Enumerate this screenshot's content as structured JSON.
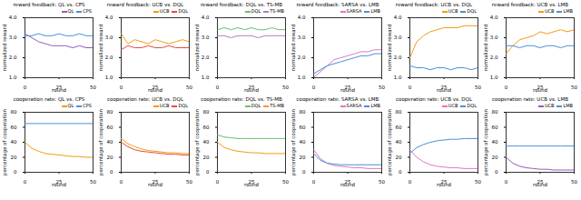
{
  "chart_data": [
    {
      "type": "line",
      "title": "reward feedback: QL vs. CPS",
      "x_label": "round",
      "y_label": "normalized reward",
      "x": [
        0,
        5,
        10,
        15,
        20,
        25,
        30,
        35,
        40,
        45,
        50
      ],
      "xlim": [
        0,
        50
      ],
      "xticks": [
        0,
        25,
        50
      ],
      "ylim": [
        1,
        4
      ],
      "yticks": [
        1,
        2,
        3,
        4
      ],
      "series": [
        {
          "name": "QL",
          "color": "#9b59b6",
          "values": [
            3.2,
            3.0,
            2.8,
            2.7,
            2.6,
            2.6,
            2.6,
            2.5,
            2.6,
            2.5,
            2.5
          ]
        },
        {
          "name": "CPS",
          "color": "#4a90d9",
          "values": [
            3.1,
            3.1,
            3.2,
            3.1,
            3.1,
            3.2,
            3.1,
            3.1,
            3.2,
            3.1,
            3.1
          ]
        }
      ]
    },
    {
      "type": "line",
      "title": "reward feedback: UCB vs. DQL",
      "x_label": "round",
      "y_label": "normalized reward",
      "x": [
        0,
        5,
        10,
        15,
        20,
        25,
        30,
        35,
        40,
        45,
        50
      ],
      "xlim": [
        0,
        50
      ],
      "xticks": [
        0,
        25,
        50
      ],
      "ylim": [
        1,
        4
      ],
      "yticks": [
        1,
        2,
        3,
        4
      ],
      "series": [
        {
          "name": "UCB",
          "color": "#f39c12",
          "values": [
            3.2,
            2.7,
            2.9,
            2.8,
            2.7,
            2.9,
            2.8,
            2.7,
            2.8,
            2.9,
            2.8
          ]
        },
        {
          "name": "DQL",
          "color": "#e74c3c",
          "values": [
            2.4,
            2.6,
            2.5,
            2.5,
            2.6,
            2.5,
            2.5,
            2.6,
            2.5,
            2.5,
            2.5
          ]
        }
      ]
    },
    {
      "type": "line",
      "title": "reward feedback: DQL vs. TS-MB",
      "x_label": "round",
      "y_label": "normalized reward",
      "x": [
        0,
        5,
        10,
        15,
        20,
        25,
        30,
        35,
        40,
        45,
        50
      ],
      "xlim": [
        0,
        50
      ],
      "xticks": [
        0,
        25,
        50
      ],
      "ylim": [
        1,
        4
      ],
      "yticks": [
        1,
        2,
        3,
        4
      ],
      "series": [
        {
          "name": "DQL",
          "color": "#6abf69",
          "values": [
            3.4,
            3.5,
            3.4,
            3.5,
            3.4,
            3.5,
            3.4,
            3.4,
            3.5,
            3.4,
            3.4
          ]
        },
        {
          "name": "TS-MB",
          "color": "#b07cc6",
          "values": [
            3.1,
            3.1,
            3.0,
            3.1,
            3.1,
            3.1,
            3.0,
            3.1,
            3.1,
            3.1,
            3.1
          ]
        }
      ]
    },
    {
      "type": "line",
      "title": "reward feedback: SARSA vs. LMB",
      "x_label": "round",
      "y_label": "normalized reward",
      "x": [
        0,
        5,
        10,
        15,
        20,
        25,
        30,
        35,
        40,
        45,
        50
      ],
      "xlim": [
        0,
        50
      ],
      "xticks": [
        0,
        25,
        50
      ],
      "ylim": [
        1,
        4
      ],
      "yticks": [
        1,
        2,
        3,
        4
      ],
      "series": [
        {
          "name": "SARSA",
          "color": "#e377c2",
          "values": [
            1.0,
            1.3,
            1.6,
            1.9,
            2.0,
            2.1,
            2.2,
            2.3,
            2.3,
            2.4,
            2.4
          ]
        },
        {
          "name": "LMB",
          "color": "#4a90d9",
          "values": [
            1.2,
            1.4,
            1.6,
            1.7,
            1.8,
            1.9,
            2.0,
            2.1,
            2.1,
            2.2,
            2.2
          ]
        }
      ]
    },
    {
      "type": "line",
      "title": "reward feedback: UCB vs. DQL",
      "x_label": "round",
      "y_label": "normalized reward",
      "x": [
        0,
        5,
        10,
        15,
        20,
        25,
        30,
        35,
        40,
        45,
        50
      ],
      "xlim": [
        0,
        50
      ],
      "xticks": [
        0,
        25,
        50
      ],
      "ylim": [
        1,
        4
      ],
      "yticks": [
        1,
        2,
        3,
        4
      ],
      "series": [
        {
          "name": "UCB",
          "color": "#f39c12",
          "values": [
            2.0,
            2.8,
            3.1,
            3.3,
            3.4,
            3.5,
            3.5,
            3.5,
            3.6,
            3.6,
            3.6
          ]
        },
        {
          "name": "DQL",
          "color": "#4a90d9",
          "values": [
            1.6,
            1.5,
            1.5,
            1.4,
            1.5,
            1.5,
            1.4,
            1.5,
            1.5,
            1.4,
            1.5
          ]
        }
      ]
    },
    {
      "type": "line",
      "title": "reward feedback: UCB vs. LMB",
      "x_label": "round",
      "y_label": "normalized reward",
      "x": [
        0,
        5,
        10,
        15,
        20,
        25,
        30,
        35,
        40,
        45,
        50
      ],
      "xlim": [
        0,
        50
      ],
      "xticks": [
        0,
        25,
        50
      ],
      "ylim": [
        1,
        4
      ],
      "yticks": [
        1,
        2,
        3,
        4
      ],
      "series": [
        {
          "name": "UCB",
          "color": "#f39c12",
          "values": [
            2.2,
            2.6,
            2.9,
            3.0,
            3.1,
            3.3,
            3.2,
            3.3,
            3.4,
            3.3,
            3.4
          ]
        },
        {
          "name": "LMB",
          "color": "#4a90d9",
          "values": [
            2.6,
            2.6,
            2.5,
            2.6,
            2.6,
            2.5,
            2.6,
            2.6,
            2.5,
            2.6,
            2.6
          ]
        }
      ]
    },
    {
      "type": "line",
      "title": "cooperation rate: QL vs. CPS",
      "x_label": "round",
      "y_label": "percentage of cooperation",
      "x": [
        0,
        5,
        10,
        15,
        20,
        25,
        30,
        35,
        40,
        45,
        50
      ],
      "xlim": [
        0,
        50
      ],
      "xticks": [
        0,
        25,
        50
      ],
      "ylim": [
        0,
        80
      ],
      "yticks": [
        0,
        20,
        40,
        60,
        80
      ],
      "series": [
        {
          "name": "QL",
          "color": "#f39c12",
          "values": [
            40,
            32,
            28,
            25,
            24,
            23,
            22,
            21,
            21,
            20,
            20
          ]
        },
        {
          "name": "CPS",
          "color": "#4a90d9",
          "values": [
            65,
            65,
            65,
            65,
            65,
            65,
            65,
            65,
            65,
            65,
            65
          ]
        }
      ]
    },
    {
      "type": "line",
      "title": "cooperation rate: UCB vs. DQL",
      "x_label": "round",
      "y_label": "percentage of cooperation",
      "x": [
        0,
        5,
        10,
        15,
        20,
        25,
        30,
        35,
        40,
        45,
        50
      ],
      "xlim": [
        0,
        50
      ],
      "xticks": [
        0,
        25,
        50
      ],
      "ylim": [
        0,
        80
      ],
      "yticks": [
        0,
        20,
        40,
        60,
        80
      ],
      "series": [
        {
          "name": "UCB",
          "color": "#f39c12",
          "values": [
            45,
            38,
            34,
            31,
            29,
            28,
            27,
            26,
            26,
            25,
            25
          ]
        },
        {
          "name": "DQL",
          "color": "#e74c3c",
          "values": [
            40,
            34,
            30,
            28,
            27,
            26,
            25,
            24,
            24,
            23,
            23
          ]
        }
      ]
    },
    {
      "type": "line",
      "title": "cooperation rate: DQL vs. TS-MB",
      "x_label": "round",
      "y_label": "percentage of cooperation",
      "x": [
        0,
        5,
        10,
        15,
        20,
        25,
        30,
        35,
        40,
        45,
        50
      ],
      "xlim": [
        0,
        50
      ],
      "xticks": [
        0,
        25,
        50
      ],
      "ylim": [
        0,
        80
      ],
      "yticks": [
        0,
        20,
        40,
        60,
        80
      ],
      "series": [
        {
          "name": "DQL",
          "color": "#6abf69",
          "values": [
            50,
            47,
            46,
            45,
            45,
            45,
            45,
            45,
            45,
            45,
            45
          ]
        },
        {
          "name": "TS-MB",
          "color": "#f39c12",
          "values": [
            40,
            33,
            30,
            28,
            27,
            26,
            26,
            25,
            25,
            25,
            25
          ]
        }
      ]
    },
    {
      "type": "line",
      "title": "cooperation rate: SARSA vs. LMB",
      "x_label": "round",
      "y_label": "percentage of cooperation",
      "x": [
        0,
        5,
        10,
        15,
        20,
        25,
        30,
        35,
        40,
        45,
        50
      ],
      "xlim": [
        0,
        50
      ],
      "xticks": [
        0,
        25,
        50
      ],
      "ylim": [
        0,
        80
      ],
      "yticks": [
        0,
        20,
        40,
        60,
        80
      ],
      "series": [
        {
          "name": "SARSA",
          "color": "#e377c2",
          "values": [
            30,
            18,
            12,
            9,
            8,
            7,
            6,
            6,
            5,
            5,
            5
          ]
        },
        {
          "name": "LMB",
          "color": "#4a90d9",
          "values": [
            25,
            16,
            12,
            11,
            10,
            10,
            10,
            10,
            10,
            10,
            10
          ]
        }
      ]
    },
    {
      "type": "line",
      "title": "cooperation rate: UCB vs. DQL",
      "x_label": "round",
      "y_label": "percentage of cooperation",
      "x": [
        0,
        5,
        10,
        15,
        20,
        25,
        30,
        35,
        40,
        45,
        50
      ],
      "xlim": [
        0,
        50
      ],
      "xticks": [
        0,
        25,
        50
      ],
      "ylim": [
        0,
        80
      ],
      "yticks": [
        0,
        20,
        40,
        60,
        80
      ],
      "series": [
        {
          "name": "UCB",
          "color": "#e377c2",
          "values": [
            30,
            20,
            14,
            10,
            8,
            7,
            6,
            6,
            5,
            5,
            5
          ]
        },
        {
          "name": "DQL",
          "color": "#4a90d9",
          "values": [
            25,
            33,
            37,
            40,
            42,
            43,
            44,
            44,
            45,
            45,
            45
          ]
        }
      ]
    },
    {
      "type": "line",
      "title": "cooperation rate: UCB vs. LMB",
      "x_label": "round",
      "y_label": "percentage of cooperation",
      "x": [
        0,
        5,
        10,
        15,
        20,
        25,
        30,
        35,
        40,
        45,
        50
      ],
      "xlim": [
        0,
        50
      ],
      "xticks": [
        0,
        25,
        50
      ],
      "ylim": [
        0,
        80
      ],
      "yticks": [
        0,
        20,
        40,
        60,
        80
      ],
      "series": [
        {
          "name": "UCB",
          "color": "#9b59b6",
          "values": [
            20,
            12,
            8,
            6,
            5,
            4,
            4,
            3,
            3,
            3,
            3
          ]
        },
        {
          "name": "LMB",
          "color": "#4a90d9",
          "values": [
            35,
            35,
            35,
            35,
            35,
            35,
            35,
            35,
            35,
            35,
            35
          ]
        }
      ]
    }
  ]
}
